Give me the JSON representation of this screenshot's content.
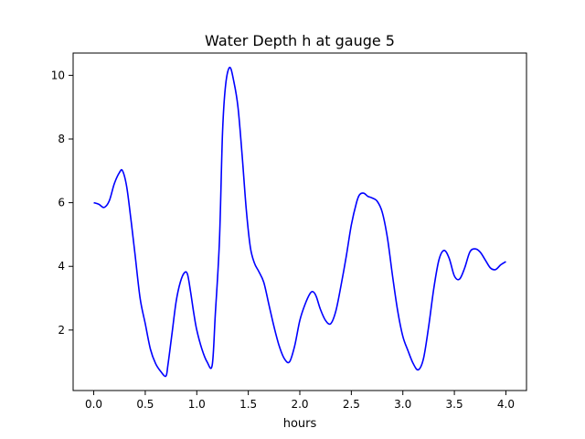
{
  "chart_data": {
    "type": "line",
    "title": "Water Depth h at gauge 5",
    "xlabel": "hours",
    "ylabel": "",
    "xlim": [
      -0.2,
      4.2
    ],
    "ylim": [
      0.1,
      10.7
    ],
    "xticks": [
      0.0,
      0.5,
      1.0,
      1.5,
      2.0,
      2.5,
      3.0,
      3.5,
      4.0
    ],
    "xtick_labels": [
      "0.0",
      "0.5",
      "1.0",
      "1.5",
      "2.0",
      "2.5",
      "3.0",
      "3.5",
      "4.0"
    ],
    "yticks": [
      2,
      4,
      6,
      8,
      10
    ],
    "ytick_labels": [
      "2",
      "4",
      "6",
      "8",
      "10"
    ],
    "grid": false,
    "series": [
      {
        "name": "",
        "color": "#0000ff",
        "x": [
          0.0,
          0.05,
          0.1,
          0.15,
          0.2,
          0.25,
          0.28,
          0.32,
          0.36,
          0.4,
          0.45,
          0.5,
          0.55,
          0.6,
          0.65,
          0.7,
          0.72,
          0.76,
          0.8,
          0.84,
          0.88,
          0.91,
          0.94,
          0.97,
          1.0,
          1.05,
          1.1,
          1.15,
          1.18,
          1.22,
          1.25,
          1.28,
          1.32,
          1.36,
          1.4,
          1.44,
          1.48,
          1.52,
          1.56,
          1.6,
          1.65,
          1.7,
          1.75,
          1.8,
          1.85,
          1.9,
          1.95,
          2.0,
          2.05,
          2.1,
          2.13,
          2.16,
          2.2,
          2.25,
          2.3,
          2.35,
          2.4,
          2.45,
          2.5,
          2.55,
          2.58,
          2.62,
          2.66,
          2.7,
          2.75,
          2.8,
          2.85,
          2.9,
          2.95,
          3.0,
          3.05,
          3.1,
          3.15,
          3.2,
          3.25,
          3.3,
          3.35,
          3.4,
          3.45,
          3.5,
          3.55,
          3.6,
          3.65,
          3.7,
          3.75,
          3.8,
          3.85,
          3.9,
          3.95,
          4.0
        ],
        "y": [
          6.0,
          5.95,
          5.85,
          6.05,
          6.6,
          6.95,
          7.0,
          6.5,
          5.5,
          4.4,
          3.0,
          2.2,
          1.4,
          0.95,
          0.7,
          0.55,
          0.9,
          1.9,
          2.9,
          3.5,
          3.8,
          3.75,
          3.2,
          2.55,
          2.0,
          1.4,
          1.0,
          0.9,
          2.5,
          4.8,
          8.2,
          9.7,
          10.25,
          9.8,
          9.0,
          7.5,
          5.8,
          4.6,
          4.1,
          3.85,
          3.5,
          2.8,
          2.1,
          1.5,
          1.1,
          1.0,
          1.5,
          2.3,
          2.8,
          3.15,
          3.2,
          3.05,
          2.65,
          2.3,
          2.2,
          2.6,
          3.4,
          4.3,
          5.3,
          6.0,
          6.25,
          6.3,
          6.2,
          6.15,
          6.05,
          5.7,
          4.9,
          3.7,
          2.6,
          1.8,
          1.35,
          0.95,
          0.75,
          1.1,
          2.1,
          3.3,
          4.2,
          4.5,
          4.25,
          3.7,
          3.6,
          3.95,
          4.45,
          4.55,
          4.45,
          4.2,
          3.95,
          3.9,
          4.05,
          4.15
        ]
      }
    ]
  }
}
